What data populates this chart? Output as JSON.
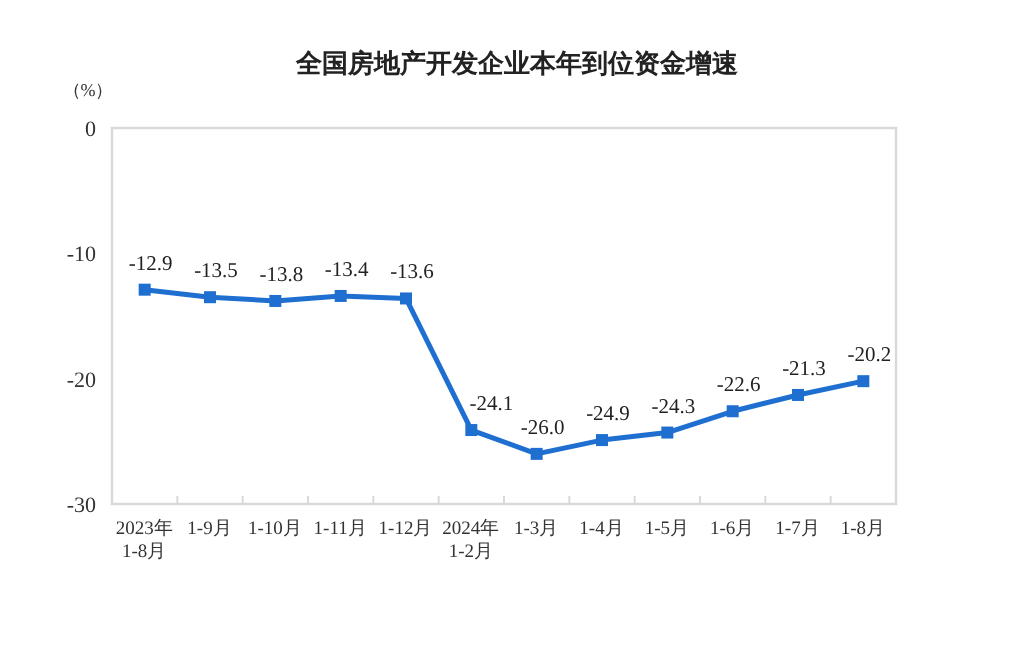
{
  "chart_data": {
    "type": "line",
    "title": "全国房地产开发企业本年到位资金增速",
    "ylabel": "（%）",
    "categories": [
      "2023年\n1-8月",
      "1-9月",
      "1-10月",
      "1-11月",
      "1-12月",
      "2024年\n1-2月",
      "1-3月",
      "1-4月",
      "1-5月",
      "1-6月",
      "1-7月",
      "1-8月"
    ],
    "series": [
      {
        "color": "#1f6fd0",
        "values": [
          -12.9,
          -13.5,
          -13.8,
          -13.4,
          -13.6,
          -24.1,
          -26.0,
          -24.9,
          -24.3,
          -22.6,
          -21.3,
          -20.2
        ]
      }
    ],
    "value_labels": [
      "-12.9",
      "-13.5",
      "-13.8",
      "-13.4",
      "-13.6",
      "-24.1",
      "-26.0",
      "-24.9",
      "-24.3",
      "-22.6",
      "-21.3",
      "-20.2"
    ],
    "ylim": [
      -30,
      0
    ],
    "yticks": [
      0,
      -10,
      -20,
      -30
    ],
    "marker": "square",
    "grid": false
  }
}
